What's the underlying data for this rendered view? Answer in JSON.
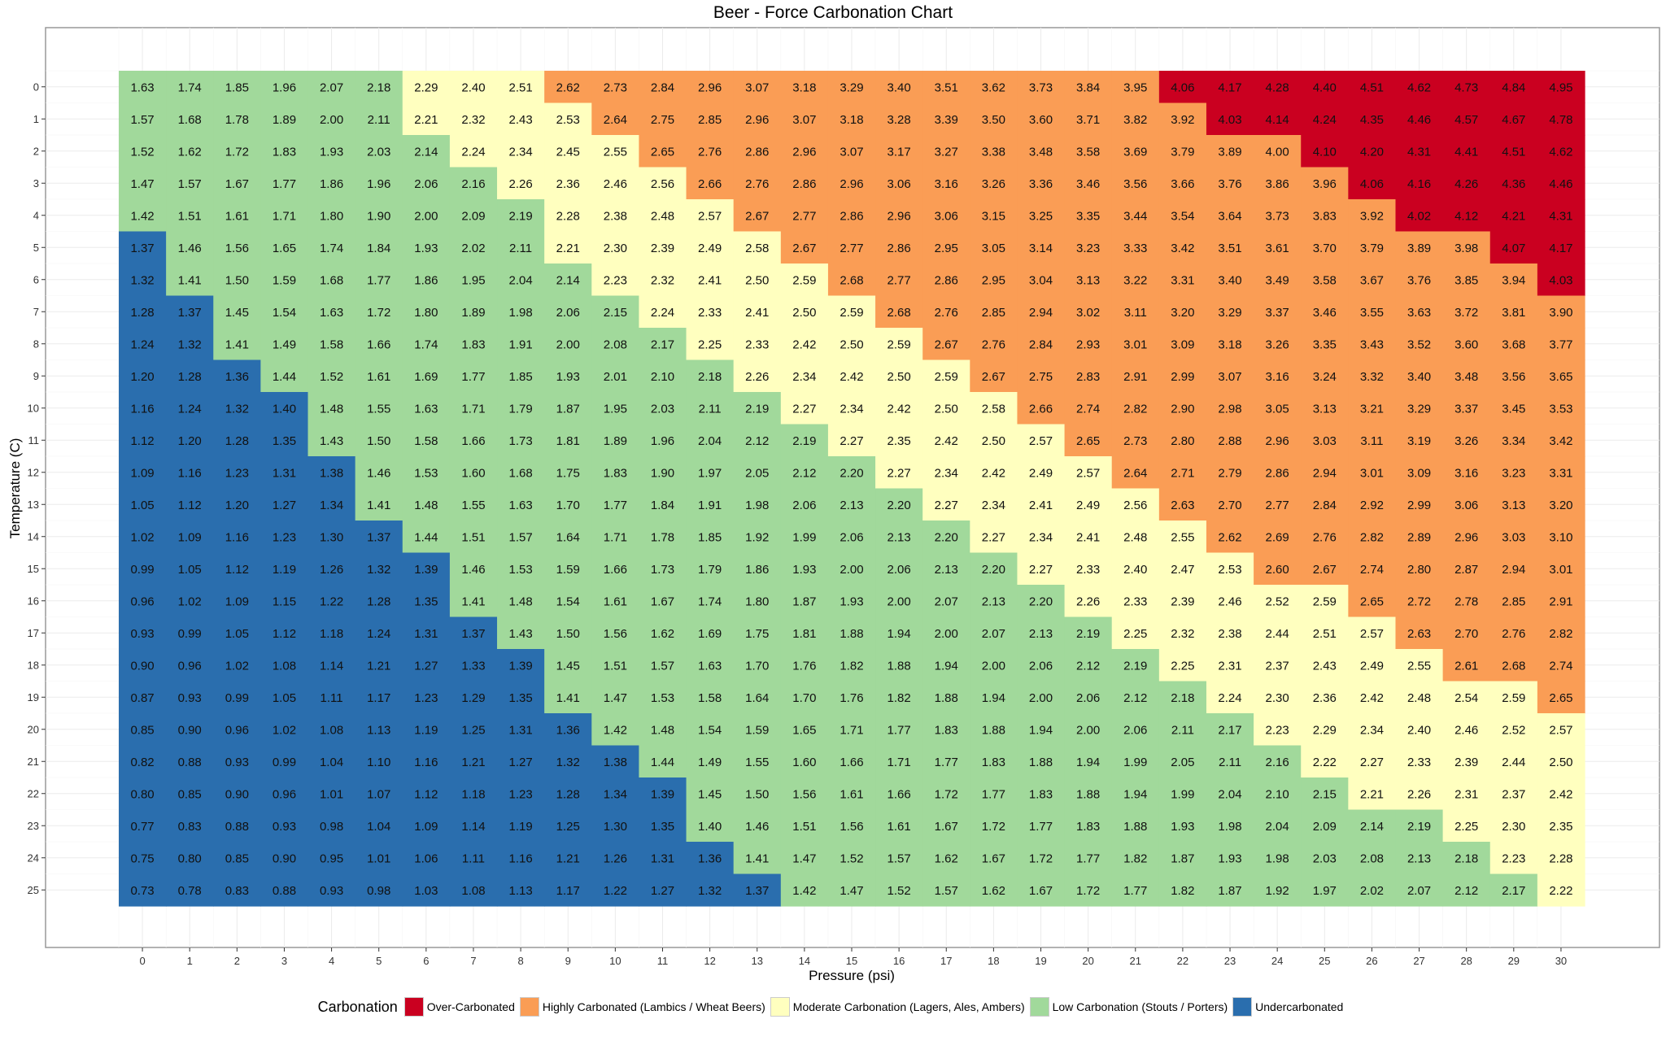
{
  "chart_data": {
    "type": "heatmap",
    "title": "Beer - Force Carbonation Chart",
    "xlabel": "Pressure (psi)",
    "ylabel": "Temperature (C)",
    "x": [
      0,
      1,
      2,
      3,
      4,
      5,
      6,
      7,
      8,
      9,
      10,
      11,
      12,
      13,
      14,
      15,
      16,
      17,
      18,
      19,
      20,
      21,
      22,
      23,
      24,
      25,
      26,
      27,
      28,
      29,
      30
    ],
    "y": [
      0,
      1,
      2,
      3,
      4,
      5,
      6,
      7,
      8,
      9,
      10,
      11,
      12,
      13,
      14,
      15,
      16,
      17,
      18,
      19,
      20,
      21,
      22,
      23,
      24,
      25
    ],
    "y_direction": "top-to-bottom",
    "grid": true,
    "legend": {
      "title": "Carbonation",
      "position": "bottom",
      "entries": [
        {
          "code": "R",
          "label": "Over-Carbonated",
          "color": "#ca0020"
        },
        {
          "code": "O",
          "label": "Highly Carbonated (Lambics / Wheat Beers)",
          "color": "#fa9d55"
        },
        {
          "code": "Y",
          "label": "Moderate Carbonation (Lagers, Ales, Ambers)",
          "color": "#ffffbf"
        },
        {
          "code": "G",
          "label": "Low Carbonation (Stouts / Porters)",
          "color": "#a1d99b"
        },
        {
          "code": "B",
          "label": "Undercarbonated",
          "color": "#2a6eae"
        }
      ]
    },
    "values": [
      [
        1.63,
        1.74,
        1.85,
        1.96,
        2.07,
        2.18,
        2.29,
        2.4,
        2.51,
        2.62,
        2.73,
        2.84,
        2.96,
        3.07,
        3.18,
        3.29,
        3.4,
        3.51,
        3.62,
        3.73,
        3.84,
        3.95,
        4.06,
        4.17,
        4.28,
        4.4,
        4.51,
        4.62,
        4.73,
        4.84,
        4.95
      ],
      [
        1.57,
        1.68,
        1.78,
        1.89,
        2.0,
        2.11,
        2.21,
        2.32,
        2.43,
        2.53,
        2.64,
        2.75,
        2.85,
        2.96,
        3.07,
        3.18,
        3.28,
        3.39,
        3.5,
        3.6,
        3.71,
        3.82,
        3.92,
        4.03,
        4.14,
        4.24,
        4.35,
        4.46,
        4.57,
        4.67,
        4.78
      ],
      [
        1.52,
        1.62,
        1.72,
        1.83,
        1.93,
        2.03,
        2.14,
        2.24,
        2.34,
        2.45,
        2.55,
        2.65,
        2.76,
        2.86,
        2.96,
        3.07,
        3.17,
        3.27,
        3.38,
        3.48,
        3.58,
        3.69,
        3.79,
        3.89,
        4.0,
        4.1,
        4.2,
        4.31,
        4.41,
        4.51,
        4.62
      ],
      [
        1.47,
        1.57,
        1.67,
        1.77,
        1.86,
        1.96,
        2.06,
        2.16,
        2.26,
        2.36,
        2.46,
        2.56,
        2.66,
        2.76,
        2.86,
        2.96,
        3.06,
        3.16,
        3.26,
        3.36,
        3.46,
        3.56,
        3.66,
        3.76,
        3.86,
        3.96,
        4.06,
        4.16,
        4.26,
        4.36,
        4.46
      ],
      [
        1.42,
        1.51,
        1.61,
        1.71,
        1.8,
        1.9,
        2.0,
        2.09,
        2.19,
        2.28,
        2.38,
        2.48,
        2.57,
        2.67,
        2.77,
        2.86,
        2.96,
        3.06,
        3.15,
        3.25,
        3.35,
        3.44,
        3.54,
        3.64,
        3.73,
        3.83,
        3.92,
        4.02,
        4.12,
        4.21,
        4.31
      ],
      [
        1.37,
        1.46,
        1.56,
        1.65,
        1.74,
        1.84,
        1.93,
        2.02,
        2.11,
        2.21,
        2.3,
        2.39,
        2.49,
        2.58,
        2.67,
        2.77,
        2.86,
        2.95,
        3.05,
        3.14,
        3.23,
        3.33,
        3.42,
        3.51,
        3.61,
        3.7,
        3.79,
        3.89,
        3.98,
        4.07,
        4.17
      ],
      [
        1.32,
        1.41,
        1.5,
        1.59,
        1.68,
        1.77,
        1.86,
        1.95,
        2.04,
        2.14,
        2.23,
        2.32,
        2.41,
        2.5,
        2.59,
        2.68,
        2.77,
        2.86,
        2.95,
        3.04,
        3.13,
        3.22,
        3.31,
        3.4,
        3.49,
        3.58,
        3.67,
        3.76,
        3.85,
        3.94,
        4.03
      ],
      [
        1.28,
        1.37,
        1.45,
        1.54,
        1.63,
        1.72,
        1.8,
        1.89,
        1.98,
        2.06,
        2.15,
        2.24,
        2.33,
        2.41,
        2.5,
        2.59,
        2.68,
        2.76,
        2.85,
        2.94,
        3.02,
        3.11,
        3.2,
        3.29,
        3.37,
        3.46,
        3.55,
        3.63,
        3.72,
        3.81,
        3.9
      ],
      [
        1.24,
        1.32,
        1.41,
        1.49,
        1.58,
        1.66,
        1.74,
        1.83,
        1.91,
        2.0,
        2.08,
        2.17,
        2.25,
        2.33,
        2.42,
        2.5,
        2.59,
        2.67,
        2.76,
        2.84,
        2.93,
        3.01,
        3.09,
        3.18,
        3.26,
        3.35,
        3.43,
        3.52,
        3.6,
        3.68,
        3.77
      ],
      [
        1.2,
        1.28,
        1.36,
        1.44,
        1.52,
        1.61,
        1.69,
        1.77,
        1.85,
        1.93,
        2.01,
        2.1,
        2.18,
        2.26,
        2.34,
        2.42,
        2.5,
        2.59,
        2.67,
        2.75,
        2.83,
        2.91,
        2.99,
        3.07,
        3.16,
        3.24,
        3.32,
        3.4,
        3.48,
        3.56,
        3.65
      ],
      [
        1.16,
        1.24,
        1.32,
        1.4,
        1.48,
        1.55,
        1.63,
        1.71,
        1.79,
        1.87,
        1.95,
        2.03,
        2.11,
        2.19,
        2.27,
        2.34,
        2.42,
        2.5,
        2.58,
        2.66,
        2.74,
        2.82,
        2.9,
        2.98,
        3.05,
        3.13,
        3.21,
        3.29,
        3.37,
        3.45,
        3.53
      ],
      [
        1.12,
        1.2,
        1.28,
        1.35,
        1.43,
        1.5,
        1.58,
        1.66,
        1.73,
        1.81,
        1.89,
        1.96,
        2.04,
        2.12,
        2.19,
        2.27,
        2.35,
        2.42,
        2.5,
        2.57,
        2.65,
        2.73,
        2.8,
        2.88,
        2.96,
        3.03,
        3.11,
        3.19,
        3.26,
        3.34,
        3.42
      ],
      [
        1.09,
        1.16,
        1.23,
        1.31,
        1.38,
        1.46,
        1.53,
        1.6,
        1.68,
        1.75,
        1.83,
        1.9,
        1.97,
        2.05,
        2.12,
        2.2,
        2.27,
        2.34,
        2.42,
        2.49,
        2.57,
        2.64,
        2.71,
        2.79,
        2.86,
        2.94,
        3.01,
        3.09,
        3.16,
        3.23,
        3.31
      ],
      [
        1.05,
        1.12,
        1.2,
        1.27,
        1.34,
        1.41,
        1.48,
        1.55,
        1.63,
        1.7,
        1.77,
        1.84,
        1.91,
        1.98,
        2.06,
        2.13,
        2.2,
        2.27,
        2.34,
        2.41,
        2.49,
        2.56,
        2.63,
        2.7,
        2.77,
        2.84,
        2.92,
        2.99,
        3.06,
        3.13,
        3.2
      ],
      [
        1.02,
        1.09,
        1.16,
        1.23,
        1.3,
        1.37,
        1.44,
        1.51,
        1.57,
        1.64,
        1.71,
        1.78,
        1.85,
        1.92,
        1.99,
        2.06,
        2.13,
        2.2,
        2.27,
        2.34,
        2.41,
        2.48,
        2.55,
        2.62,
        2.69,
        2.76,
        2.82,
        2.89,
        2.96,
        3.03,
        3.1
      ],
      [
        0.99,
        1.05,
        1.12,
        1.19,
        1.26,
        1.32,
        1.39,
        1.46,
        1.53,
        1.59,
        1.66,
        1.73,
        1.79,
        1.86,
        1.93,
        2.0,
        2.06,
        2.13,
        2.2,
        2.27,
        2.33,
        2.4,
        2.47,
        2.53,
        2.6,
        2.67,
        2.74,
        2.8,
        2.87,
        2.94,
        3.01
      ],
      [
        0.96,
        1.02,
        1.09,
        1.15,
        1.22,
        1.28,
        1.35,
        1.41,
        1.48,
        1.54,
        1.61,
        1.67,
        1.74,
        1.8,
        1.87,
        1.93,
        2.0,
        2.07,
        2.13,
        2.2,
        2.26,
        2.33,
        2.39,
        2.46,
        2.52,
        2.59,
        2.65,
        2.72,
        2.78,
        2.85,
        2.91
      ],
      [
        0.93,
        0.99,
        1.05,
        1.12,
        1.18,
        1.24,
        1.31,
        1.37,
        1.43,
        1.5,
        1.56,
        1.62,
        1.69,
        1.75,
        1.81,
        1.88,
        1.94,
        2.0,
        2.07,
        2.13,
        2.19,
        2.25,
        2.32,
        2.38,
        2.44,
        2.51,
        2.57,
        2.63,
        2.7,
        2.76,
        2.82
      ],
      [
        0.9,
        0.96,
        1.02,
        1.08,
        1.14,
        1.21,
        1.27,
        1.33,
        1.39,
        1.45,
        1.51,
        1.57,
        1.63,
        1.7,
        1.76,
        1.82,
        1.88,
        1.94,
        2.0,
        2.06,
        2.12,
        2.19,
        2.25,
        2.31,
        2.37,
        2.43,
        2.49,
        2.55,
        2.61,
        2.68,
        2.74
      ],
      [
        0.87,
        0.93,
        0.99,
        1.05,
        1.11,
        1.17,
        1.23,
        1.29,
        1.35,
        1.41,
        1.47,
        1.53,
        1.58,
        1.64,
        1.7,
        1.76,
        1.82,
        1.88,
        1.94,
        2.0,
        2.06,
        2.12,
        2.18,
        2.24,
        2.3,
        2.36,
        2.42,
        2.48,
        2.54,
        2.59,
        2.65
      ],
      [
        0.85,
        0.9,
        0.96,
        1.02,
        1.08,
        1.13,
        1.19,
        1.25,
        1.31,
        1.36,
        1.42,
        1.48,
        1.54,
        1.59,
        1.65,
        1.71,
        1.77,
        1.83,
        1.88,
        1.94,
        2.0,
        2.06,
        2.11,
        2.17,
        2.23,
        2.29,
        2.34,
        2.4,
        2.46,
        2.52,
        2.57
      ],
      [
        0.82,
        0.88,
        0.93,
        0.99,
        1.04,
        1.1,
        1.16,
        1.21,
        1.27,
        1.32,
        1.38,
        1.44,
        1.49,
        1.55,
        1.6,
        1.66,
        1.71,
        1.77,
        1.83,
        1.88,
        1.94,
        1.99,
        2.05,
        2.11,
        2.16,
        2.22,
        2.27,
        2.33,
        2.39,
        2.44,
        2.5
      ],
      [
        0.8,
        0.85,
        0.9,
        0.96,
        1.01,
        1.07,
        1.12,
        1.18,
        1.23,
        1.28,
        1.34,
        1.39,
        1.45,
        1.5,
        1.56,
        1.61,
        1.66,
        1.72,
        1.77,
        1.83,
        1.88,
        1.94,
        1.99,
        2.04,
        2.1,
        2.15,
        2.21,
        2.26,
        2.31,
        2.37,
        2.42
      ],
      [
        0.77,
        0.83,
        0.88,
        0.93,
        0.98,
        1.04,
        1.09,
        1.14,
        1.19,
        1.25,
        1.3,
        1.35,
        1.4,
        1.46,
        1.51,
        1.56,
        1.61,
        1.67,
        1.72,
        1.77,
        1.83,
        1.88,
        1.93,
        1.98,
        2.04,
        2.09,
        2.14,
        2.19,
        2.25,
        2.3,
        2.35
      ],
      [
        0.75,
        0.8,
        0.85,
        0.9,
        0.95,
        1.01,
        1.06,
        1.11,
        1.16,
        1.21,
        1.26,
        1.31,
        1.36,
        1.41,
        1.47,
        1.52,
        1.57,
        1.62,
        1.67,
        1.72,
        1.77,
        1.82,
        1.87,
        1.93,
        1.98,
        2.03,
        2.08,
        2.13,
        2.18,
        2.23,
        2.28
      ],
      [
        0.73,
        0.78,
        0.83,
        0.88,
        0.93,
        0.98,
        1.03,
        1.08,
        1.13,
        1.17,
        1.22,
        1.27,
        1.32,
        1.37,
        1.42,
        1.47,
        1.52,
        1.57,
        1.62,
        1.67,
        1.72,
        1.77,
        1.82,
        1.87,
        1.92,
        1.97,
        2.02,
        2.07,
        2.12,
        2.17,
        2.22
      ]
    ],
    "categories": [
      "GGGGGG YYY OOOOOOOOOOOOO RRRRRRRRR",
      "GGGGGG YYYY OOOOOOOOOOOOO RRRRRRRR",
      "GGGGGGG YYYY OOOOOOOOOOOOOO RRRRRR",
      "GGGGGGGG YYYY OOOOOOOOOOOOOO RRRRR",
      "GGGGGGGGG YYYY OOOOOOOOOOOOOO RRRR",
      "B GGGGGGGG YYYYY OOOOOOOOOOOOOOO RR",
      "B GGGGGGGGG YYYYY OOOOOOOOOOOOOOO R",
      "BB GGGGGGGGG YYYYY OOOOOOOOOOOOOOO",
      "BB GGGGGGGGGG YYYYY OOOOOOOOOOOOOO",
      "BBB GGGGGGGGGG YYYYY OOOOOOOOOOOOO",
      "BBBB GGGGGGGGGG YYYYY OOOOOOOOOOOO",
      "BBBB GGGGGGGGGGG YYYYY OOOOOOOOOOO",
      "BBBBB GGGGGGGGGGG YYYYY OOOOOOOOOO",
      "BBBBB GGGGGGGGGGGG YYYYY OOOOOOOOO",
      "BBBBBB GGGGGGGGGGGG YYYYY OOOOOOOO",
      "BBBBBBB GGGGGGGGGGGG YYYYY OOOOOOO",
      "BBBBBBB GGGGGGGGGGGGG YYYYYY OOOOO",
      "BBBBBBBB GGGGGGGGGGGGG YYYYYY OOOO",
      "BBBBBBBBB GGGGGGGGGGGGG YYYYYY OOO",
      "BBBBBBBBB GGGGGGGGGGGGGG YYYYYYY O",
      "BBBBBBBBBB GGGGGGGGGGGGGG YYYYYYY",
      "BBBBBBBBBBB GGGGGGGGGGGGGG YYYYYY",
      "BBBBBBBBBBBB GGGGGGGGGGGGGG YYYYY",
      "BBBBBBBBBBBB GGGGGGGGGGGGGGGG YYY",
      "BBBBBBBBBBBBB GGGGGGGGGGGGGGGG YY",
      "BBBBBBBBBBBBBB GGGGGGGGGGGGGGGG Y"
    ]
  }
}
